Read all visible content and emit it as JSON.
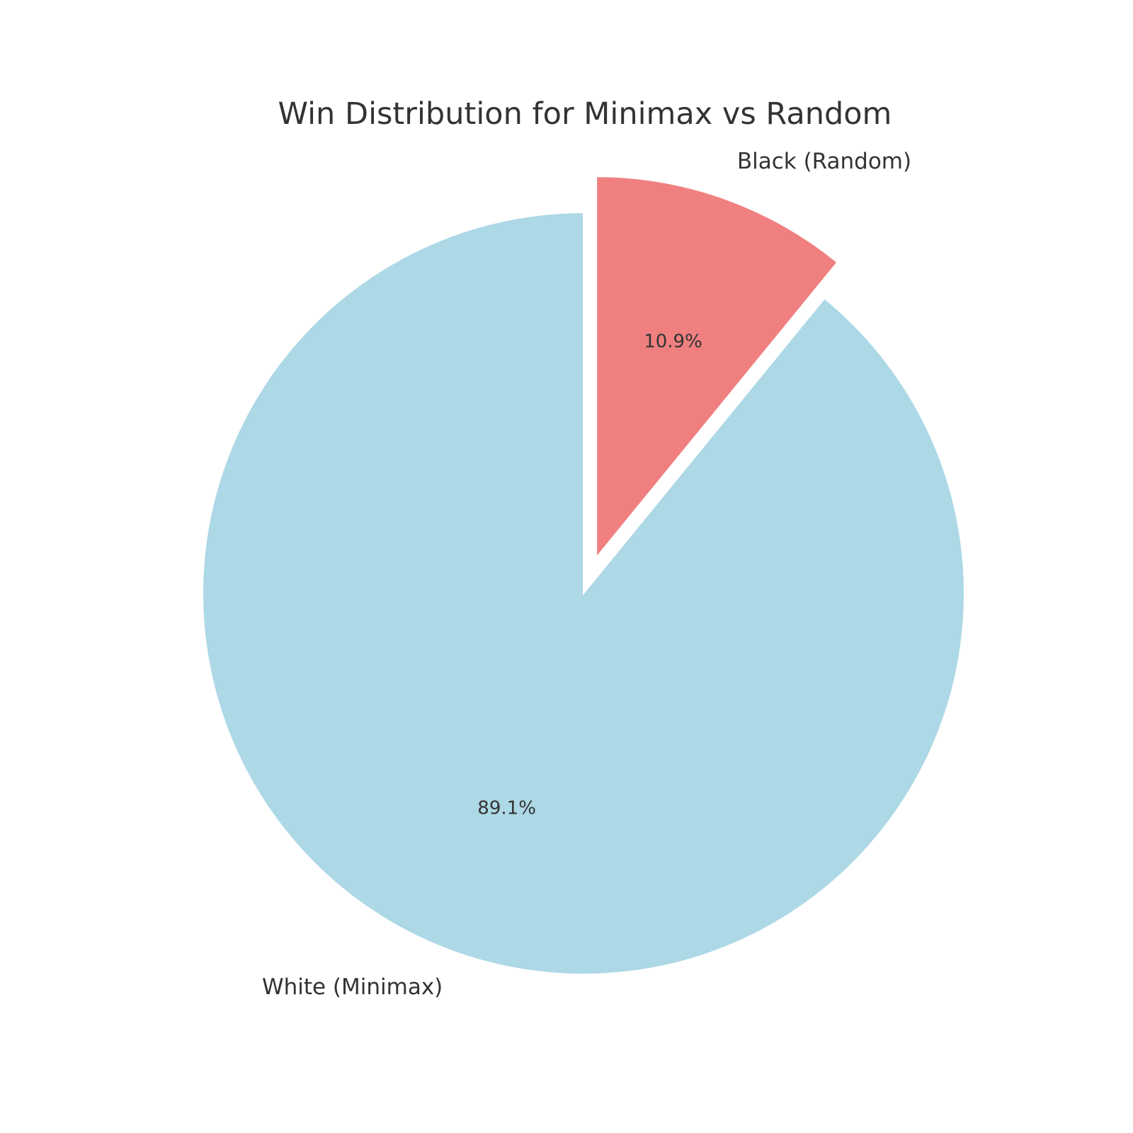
{
  "chart_data": {
    "type": "pie",
    "title": "Win Distribution for Minimax vs Random",
    "slices": [
      {
        "label": "White (Minimax)",
        "value": 89.1,
        "pct_label": "89.1%",
        "color": "#add8e6",
        "exploded": false
      },
      {
        "label": "Black (Random)",
        "value": 10.9,
        "pct_label": "10.9%",
        "color": "#f08080",
        "exploded": true
      }
    ],
    "start_angle": "12 o'clock",
    "direction": "counterclockwise",
    "legend": "none"
  }
}
